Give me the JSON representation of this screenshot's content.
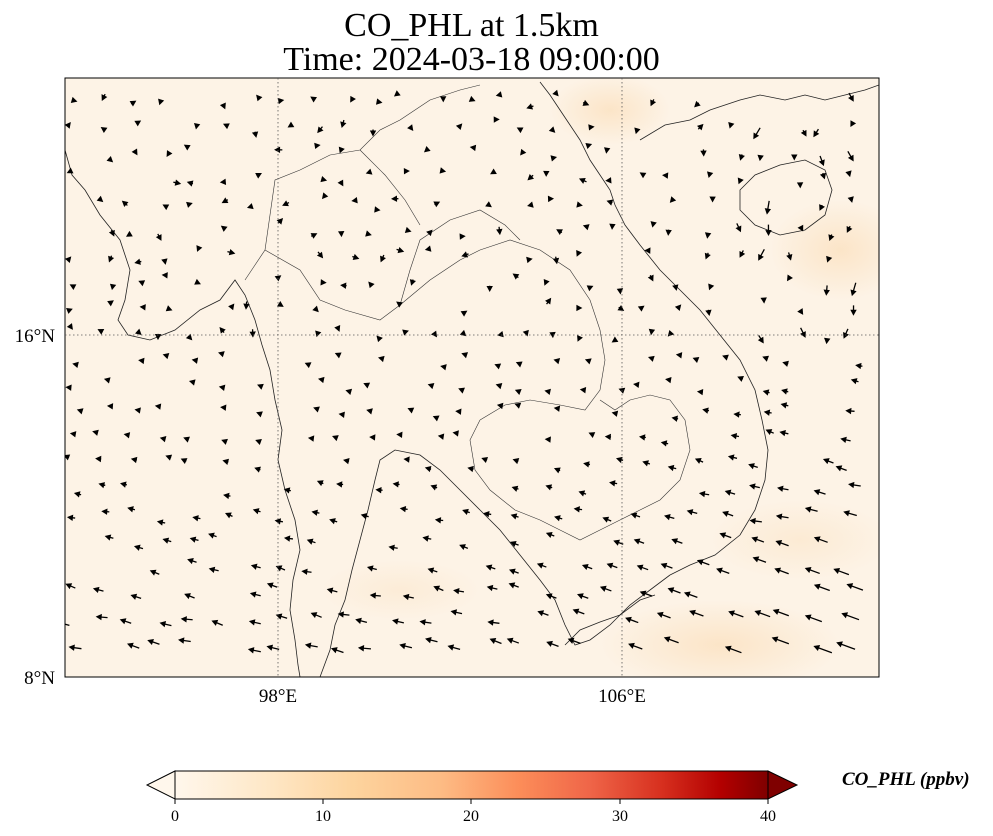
{
  "title": {
    "line1": "CO_PHL at 1.5km",
    "line2": "Time: 2024-03-18 09:00:00"
  },
  "axes": {
    "lon_ticks": [
      "98°E",
      "106°E"
    ],
    "lat_ticks": [
      "16°N",
      "8°N"
    ],
    "lon_range": [
      93,
      112
    ],
    "lat_range": [
      8,
      22
    ],
    "gridlines": "dotted"
  },
  "colorbar": {
    "label": "CO_PHL (ppbv)",
    "ticks": [
      "0",
      "10",
      "20",
      "30",
      "40"
    ],
    "range": [
      0,
      40
    ],
    "extend": "both",
    "colormap": [
      "#fff7ec",
      "#fee8c8",
      "#fdd49e",
      "#fdbb84",
      "#fc8d59",
      "#ef6548",
      "#d7301f",
      "#b30000",
      "#7f0000"
    ]
  },
  "field": {
    "background_color": "#fdf3e6",
    "typical_value_ppbv": 1.5
  },
  "wind": {
    "arrow_color": "#000000",
    "description_regime": "weak northerlies over land, easterlies strengthening toward the south and east"
  }
}
